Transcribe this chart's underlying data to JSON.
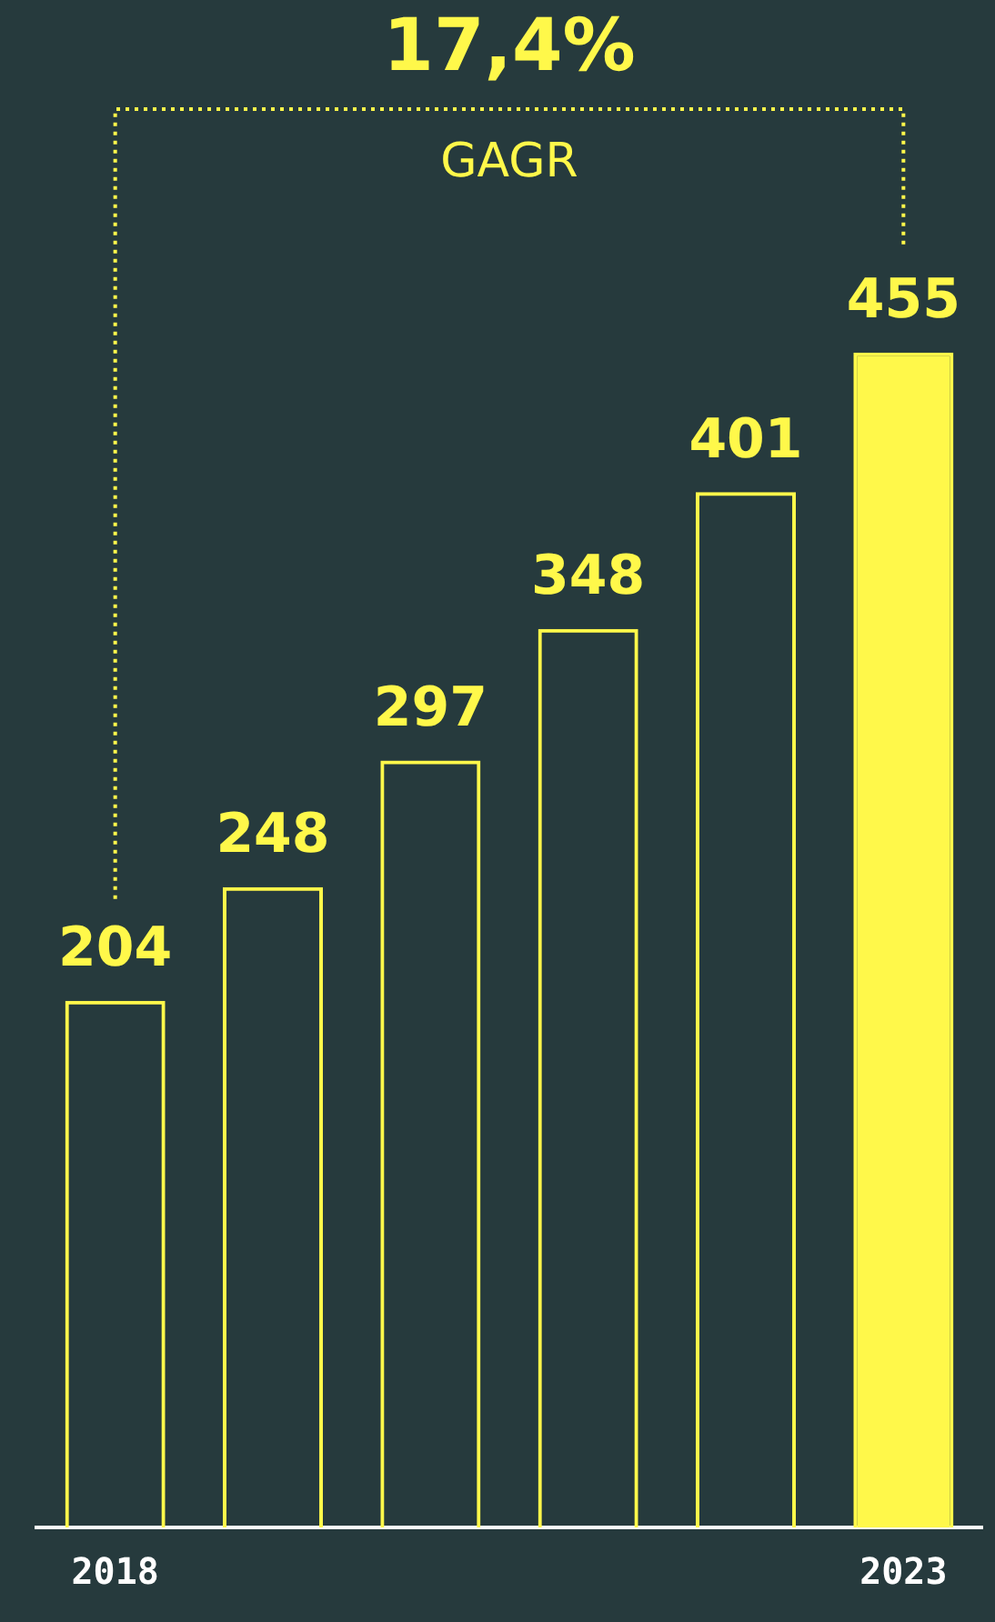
{
  "chart_data": {
    "type": "bar",
    "categories": [
      "2018",
      null,
      null,
      null,
      null,
      "2023"
    ],
    "values": [
      204,
      248,
      297,
      348,
      401,
      455
    ],
    "color": "#fff84a",
    "colors": [
      "#fff84a",
      "#fff84a",
      "#fff84a",
      "#fff84a",
      "#fff84a",
      "#fff84a"
    ],
    "data_labels": true,
    "annotations": [
      "17,4%",
      "GAGR"
    ],
    "grid": false,
    "legend": false,
    "tick_labels": "x"
  }
}
